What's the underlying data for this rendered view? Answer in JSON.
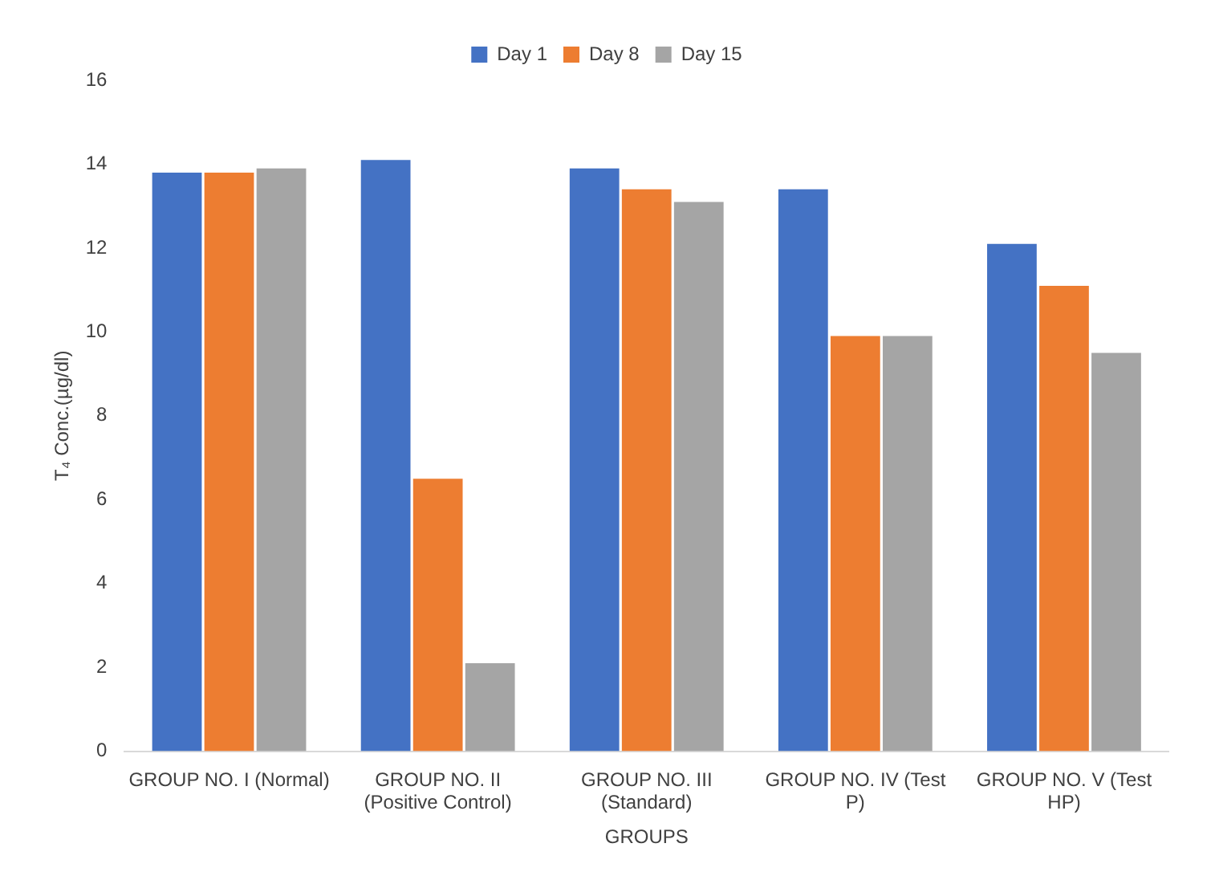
{
  "chart_data": {
    "type": "bar",
    "xlabel": "GROUPS",
    "ylabel": "T₄ Conc.(µg/dl)",
    "categories": [
      "GROUP NO. I (Normal)",
      "GROUP NO. II (Positive Control)",
      "GROUP NO. III (Standard)",
      "GROUP NO. IV (Test P)",
      "GROUP NO. V (Test HP)"
    ],
    "series": [
      {
        "name": "Day 1",
        "color": "#4472c4",
        "values": [
          13.8,
          14.1,
          13.9,
          13.4,
          12.1
        ]
      },
      {
        "name": "Day 8",
        "color": "#ed7d31",
        "values": [
          13.8,
          6.5,
          13.4,
          9.9,
          11.1
        ]
      },
      {
        "name": "Day 15",
        "color": "#a5a5a5",
        "values": [
          13.9,
          2.1,
          13.1,
          9.9,
          9.5
        ]
      }
    ],
    "ylim": [
      0,
      16
    ],
    "yticks": [
      0,
      2,
      4,
      6,
      8,
      10,
      12,
      14,
      16
    ],
    "grid": false,
    "legend": "top"
  }
}
